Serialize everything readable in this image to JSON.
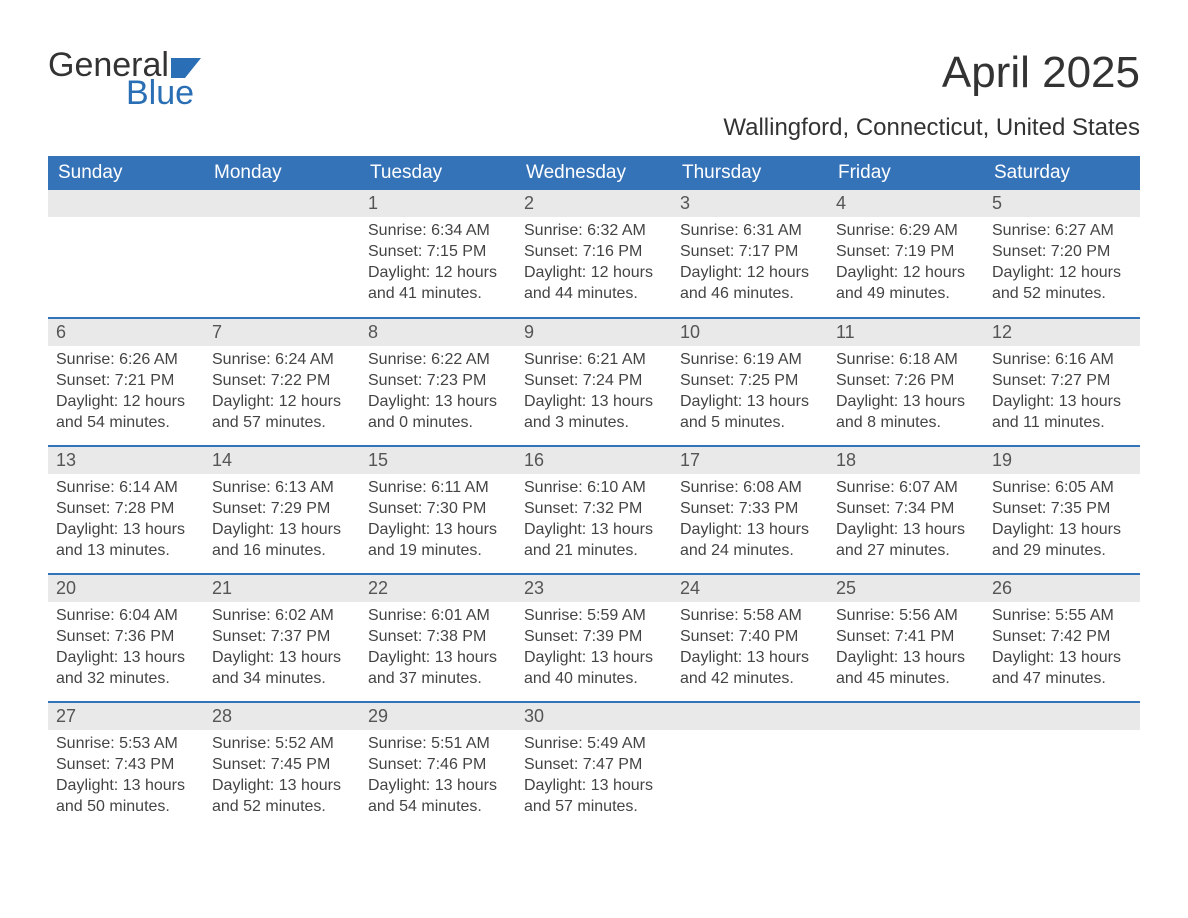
{
  "logo": {
    "word1": "General",
    "word2": "Blue",
    "accent_color": "#2a6fb5",
    "text_color": "#333333"
  },
  "title": "April 2025",
  "location": "Wallingford, Connecticut, United States",
  "colors": {
    "header_bg": "#3573b9",
    "header_text": "#ffffff",
    "daybar_bg": "#e9e9e9",
    "daybar_text": "#555555",
    "body_text": "#444444",
    "rule": "#3573b9",
    "page_bg": "#ffffff"
  },
  "typography": {
    "title_fontsize": 44,
    "location_fontsize": 24,
    "header_fontsize": 19,
    "daynum_fontsize": 18,
    "body_fontsize": 16
  },
  "day_headers": [
    "Sunday",
    "Monday",
    "Tuesday",
    "Wednesday",
    "Thursday",
    "Friday",
    "Saturday"
  ],
  "labels": {
    "sunrise": "Sunrise:",
    "sunset": "Sunset:",
    "daylight_prefix": "Daylight:"
  },
  "weeks": [
    [
      null,
      null,
      {
        "d": "1",
        "sunrise": "6:34 AM",
        "sunset": "7:15 PM",
        "daylight": "12 hours and 41 minutes."
      },
      {
        "d": "2",
        "sunrise": "6:32 AM",
        "sunset": "7:16 PM",
        "daylight": "12 hours and 44 minutes."
      },
      {
        "d": "3",
        "sunrise": "6:31 AM",
        "sunset": "7:17 PM",
        "daylight": "12 hours and 46 minutes."
      },
      {
        "d": "4",
        "sunrise": "6:29 AM",
        "sunset": "7:19 PM",
        "daylight": "12 hours and 49 minutes."
      },
      {
        "d": "5",
        "sunrise": "6:27 AM",
        "sunset": "7:20 PM",
        "daylight": "12 hours and 52 minutes."
      }
    ],
    [
      {
        "d": "6",
        "sunrise": "6:26 AM",
        "sunset": "7:21 PM",
        "daylight": "12 hours and 54 minutes."
      },
      {
        "d": "7",
        "sunrise": "6:24 AM",
        "sunset": "7:22 PM",
        "daylight": "12 hours and 57 minutes."
      },
      {
        "d": "8",
        "sunrise": "6:22 AM",
        "sunset": "7:23 PM",
        "daylight": "13 hours and 0 minutes."
      },
      {
        "d": "9",
        "sunrise": "6:21 AM",
        "sunset": "7:24 PM",
        "daylight": "13 hours and 3 minutes."
      },
      {
        "d": "10",
        "sunrise": "6:19 AM",
        "sunset": "7:25 PM",
        "daylight": "13 hours and 5 minutes."
      },
      {
        "d": "11",
        "sunrise": "6:18 AM",
        "sunset": "7:26 PM",
        "daylight": "13 hours and 8 minutes."
      },
      {
        "d": "12",
        "sunrise": "6:16 AM",
        "sunset": "7:27 PM",
        "daylight": "13 hours and 11 minutes."
      }
    ],
    [
      {
        "d": "13",
        "sunrise": "6:14 AM",
        "sunset": "7:28 PM",
        "daylight": "13 hours and 13 minutes."
      },
      {
        "d": "14",
        "sunrise": "6:13 AM",
        "sunset": "7:29 PM",
        "daylight": "13 hours and 16 minutes."
      },
      {
        "d": "15",
        "sunrise": "6:11 AM",
        "sunset": "7:30 PM",
        "daylight": "13 hours and 19 minutes."
      },
      {
        "d": "16",
        "sunrise": "6:10 AM",
        "sunset": "7:32 PM",
        "daylight": "13 hours and 21 minutes."
      },
      {
        "d": "17",
        "sunrise": "6:08 AM",
        "sunset": "7:33 PM",
        "daylight": "13 hours and 24 minutes."
      },
      {
        "d": "18",
        "sunrise": "6:07 AM",
        "sunset": "7:34 PM",
        "daylight": "13 hours and 27 minutes."
      },
      {
        "d": "19",
        "sunrise": "6:05 AM",
        "sunset": "7:35 PM",
        "daylight": "13 hours and 29 minutes."
      }
    ],
    [
      {
        "d": "20",
        "sunrise": "6:04 AM",
        "sunset": "7:36 PM",
        "daylight": "13 hours and 32 minutes."
      },
      {
        "d": "21",
        "sunrise": "6:02 AM",
        "sunset": "7:37 PM",
        "daylight": "13 hours and 34 minutes."
      },
      {
        "d": "22",
        "sunrise": "6:01 AM",
        "sunset": "7:38 PM",
        "daylight": "13 hours and 37 minutes."
      },
      {
        "d": "23",
        "sunrise": "5:59 AM",
        "sunset": "7:39 PM",
        "daylight": "13 hours and 40 minutes."
      },
      {
        "d": "24",
        "sunrise": "5:58 AM",
        "sunset": "7:40 PM",
        "daylight": "13 hours and 42 minutes."
      },
      {
        "d": "25",
        "sunrise": "5:56 AM",
        "sunset": "7:41 PM",
        "daylight": "13 hours and 45 minutes."
      },
      {
        "d": "26",
        "sunrise": "5:55 AM",
        "sunset": "7:42 PM",
        "daylight": "13 hours and 47 minutes."
      }
    ],
    [
      {
        "d": "27",
        "sunrise": "5:53 AM",
        "sunset": "7:43 PM",
        "daylight": "13 hours and 50 minutes."
      },
      {
        "d": "28",
        "sunrise": "5:52 AM",
        "sunset": "7:45 PM",
        "daylight": "13 hours and 52 minutes."
      },
      {
        "d": "29",
        "sunrise": "5:51 AM",
        "sunset": "7:46 PM",
        "daylight": "13 hours and 54 minutes."
      },
      {
        "d": "30",
        "sunrise": "5:49 AM",
        "sunset": "7:47 PM",
        "daylight": "13 hours and 57 minutes."
      },
      null,
      null,
      null
    ]
  ]
}
